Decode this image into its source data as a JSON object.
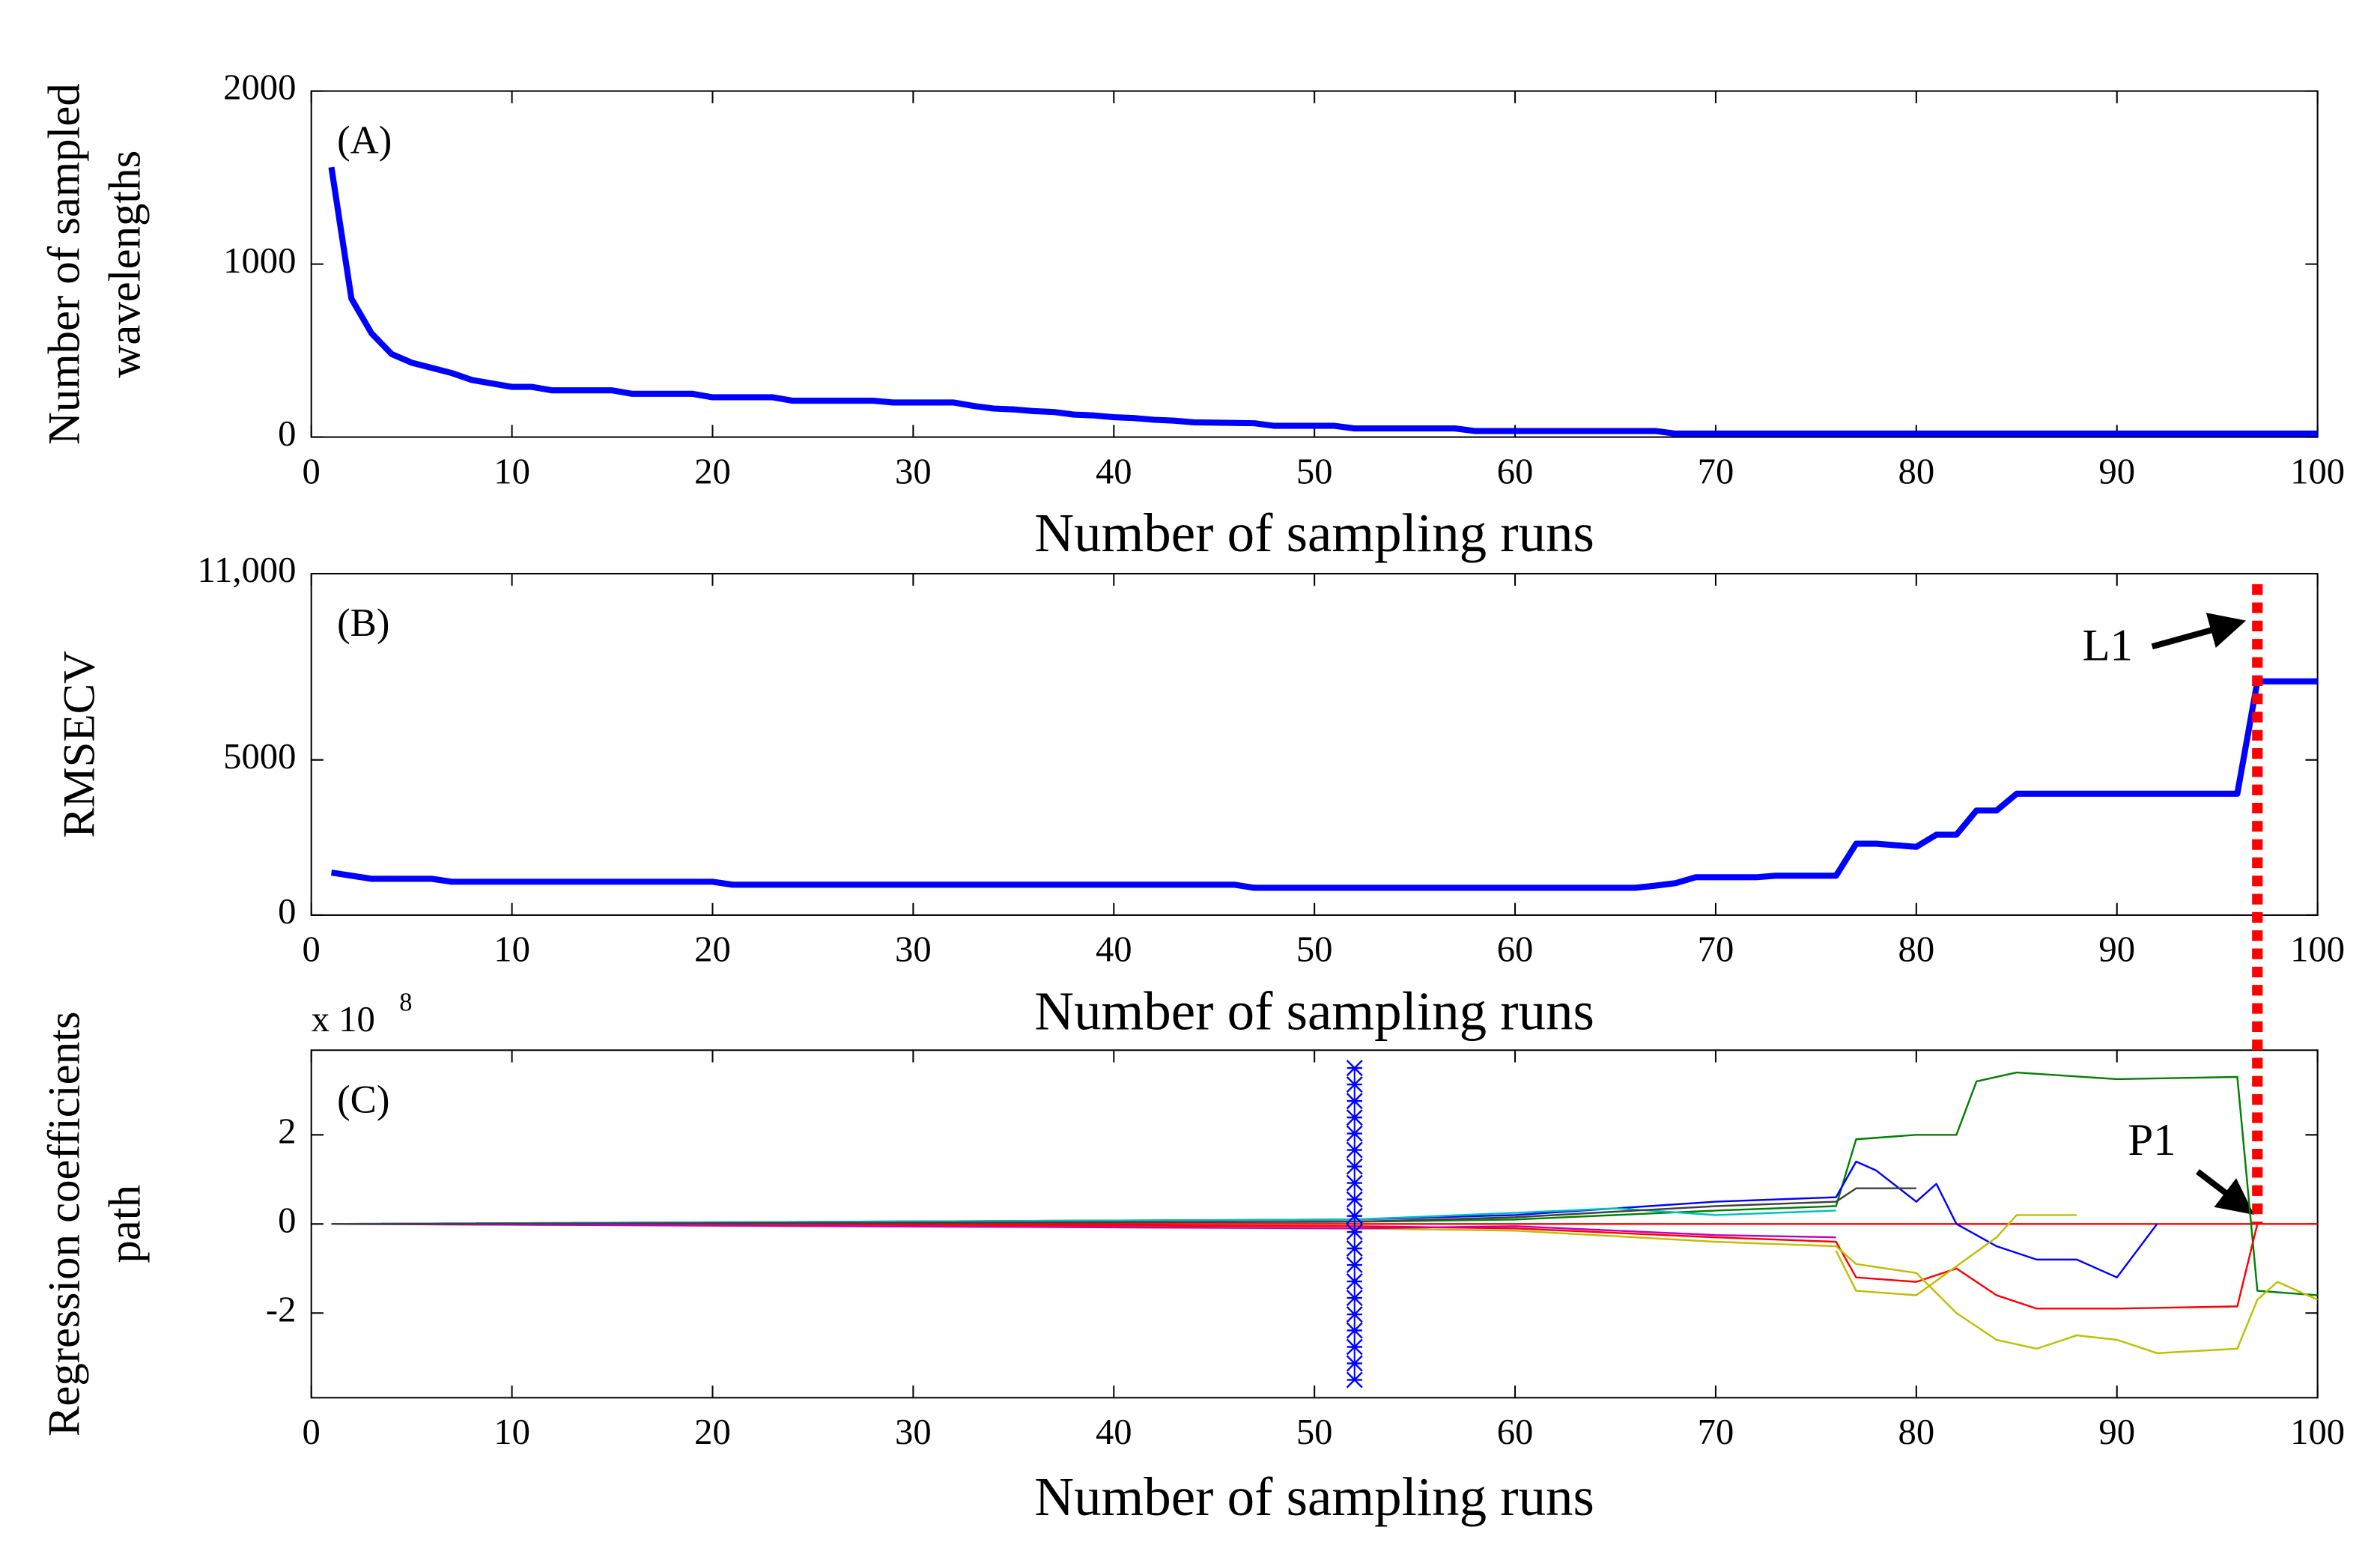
{
  "chart_data": [
    {
      "type": "line",
      "annotation": "(A)",
      "xlabel": "Number of sampling runs",
      "ylabel": [
        "Number of sampled",
        "wavelengths"
      ],
      "xlim": [
        0,
        100
      ],
      "xticks": [
        0,
        10,
        20,
        30,
        40,
        50,
        60,
        70,
        80,
        90,
        100
      ],
      "ylim": [
        0,
        2000
      ],
      "yticks": [
        0,
        1000,
        2000
      ],
      "series": [
        {
          "color": "#0000ff",
          "x": [
            1,
            2,
            3,
            4,
            5,
            6,
            7,
            8,
            9,
            10,
            11,
            12,
            15,
            16,
            19,
            20,
            23,
            24,
            28,
            29,
            32,
            33,
            34,
            35,
            36,
            37,
            38,
            39,
            40,
            41,
            42,
            43,
            44,
            47,
            48,
            51,
            52,
            57,
            58,
            67,
            68,
            100
          ],
          "values": [
            1560,
            800,
            600,
            480,
            430,
            400,
            370,
            330,
            310,
            290,
            290,
            270,
            270,
            250,
            250,
            230,
            230,
            210,
            210,
            200,
            200,
            180,
            165,
            160,
            150,
            145,
            130,
            125,
            115,
            110,
            100,
            95,
            85,
            80,
            65,
            65,
            50,
            50,
            35,
            35,
            20,
            20
          ]
        }
      ]
    },
    {
      "type": "line",
      "annotation": "(B)",
      "xlabel": "Number of sampling runs",
      "ylabel": [
        "RMSECV"
      ],
      "xlim": [
        0,
        100
      ],
      "xticks": [
        0,
        10,
        20,
        30,
        40,
        50,
        60,
        70,
        80,
        90,
        100
      ],
      "ylim": [
        0,
        11000
      ],
      "yticks": [
        0,
        5000,
        {
          "value": 11000,
          "label": "11,000"
        }
      ],
      "vline_x": 97,
      "vline_color": "#ff0000",
      "vline_label": "L1",
      "series": [
        {
          "color": "#0000ff",
          "x": [
            1,
            3,
            6,
            7,
            20,
            21,
            46,
            47,
            66,
            67,
            68,
            69,
            72,
            73,
            76,
            77,
            78,
            79,
            80,
            81,
            82,
            83,
            84,
            85,
            96,
            97,
            100
          ],
          "values": [
            1370,
            1170,
            1170,
            1075,
            1075,
            980,
            980,
            880,
            880,
            950,
            1030,
            1220,
            1220,
            1270,
            1270,
            2300,
            2300,
            2250,
            2200,
            2590,
            2590,
            3370,
            3370,
            3910,
            3910,
            7530,
            7530
          ]
        }
      ]
    },
    {
      "type": "line",
      "annotation": "(C)",
      "xlabel": "Number of sampling runs",
      "ylabel": [
        "Regression coefficients",
        "path"
      ],
      "y_scale_label": "x 10",
      "y_scale_power": "8",
      "point_label": "P1",
      "xlim": [
        0,
        100
      ],
      "xticks": [
        0,
        10,
        20,
        30,
        40,
        50,
        60,
        70,
        80,
        90,
        100
      ],
      "ylim": [
        -3.9,
        3.9
      ],
      "yticks": [
        -2,
        0,
        2
      ],
      "marker_line": {
        "color": "#0000ff",
        "x": 52,
        "values": [
          -3.5,
          -3.13,
          -2.76,
          -2.39,
          -2.03,
          -1.66,
          -1.29,
          -0.92,
          -0.55,
          -0.18,
          0.18,
          0.55,
          0.92,
          1.29,
          1.66,
          2.03,
          2.39,
          2.76,
          3.13,
          3.5
        ]
      },
      "series": [
        {
          "color": "#ff0000",
          "x": [
            1,
            100
          ],
          "values": [
            0,
            0
          ]
        },
        {
          "color": "#008000",
          "x": [
            1,
            52,
            60,
            70,
            76,
            77,
            80,
            82,
            83,
            85,
            90,
            96,
            97,
            100
          ],
          "values": [
            0,
            0.05,
            0.1,
            0.3,
            0.4,
            1.9,
            2.0,
            2.0,
            3.2,
            3.4,
            3.25,
            3.3,
            -1.5,
            -1.6
          ]
        },
        {
          "color": "#0000ff",
          "x": [
            1,
            52,
            60,
            70,
            76,
            77,
            78,
            80,
            81,
            82,
            84,
            86,
            88,
            90,
            92
          ],
          "values": [
            0,
            0.1,
            0.2,
            0.5,
            0.6,
            1.4,
            1.2,
            0.5,
            0.9,
            0,
            -0.5,
            -0.8,
            -0.8,
            -1.2,
            0
          ]
        },
        {
          "color": "#ff0000",
          "x": [
            1,
            52,
            60,
            70,
            76,
            77,
            80,
            82,
            84,
            86,
            90,
            96,
            97
          ],
          "values": [
            0,
            -0.05,
            -0.1,
            -0.3,
            -0.4,
            -1.2,
            -1.3,
            -1.0,
            -1.6,
            -1.9,
            -1.9,
            -1.85,
            0
          ]
        },
        {
          "color": "#bfbf00",
          "x": [
            1,
            52,
            60,
            70,
            76,
            77,
            80,
            82,
            84,
            86,
            88,
            90,
            92,
            96,
            97,
            98,
            100
          ],
          "values": [
            0,
            -0.1,
            -0.15,
            -0.4,
            -0.5,
            -0.9,
            -1.1,
            -2.0,
            -2.6,
            -2.8,
            -2.5,
            -2.6,
            -2.9,
            -2.8,
            -1.7,
            -1.3,
            -1.7
          ]
        },
        {
          "color": "#bfbf00",
          "x": [
            76,
            77,
            80,
            84,
            85,
            88
          ],
          "values": [
            -0.6,
            -1.5,
            -1.6,
            -0.3,
            0.2,
            0.2
          ]
        },
        {
          "color": "#00bfbf",
          "x": [
            1,
            52,
            60,
            65,
            70,
            76
          ],
          "values": [
            0,
            0.1,
            0.25,
            0.35,
            0.2,
            0.3
          ]
        },
        {
          "color": "#bf00bf",
          "x": [
            1,
            52,
            60,
            70,
            76
          ],
          "values": [
            0,
            -0.1,
            -0.05,
            -0.25,
            -0.3
          ]
        },
        {
          "color": "#404040",
          "x": [
            1,
            52,
            60,
            70,
            76,
            77,
            80
          ],
          "values": [
            0,
            0.05,
            0.15,
            0.4,
            0.5,
            0.8,
            0.8
          ]
        }
      ]
    }
  ]
}
